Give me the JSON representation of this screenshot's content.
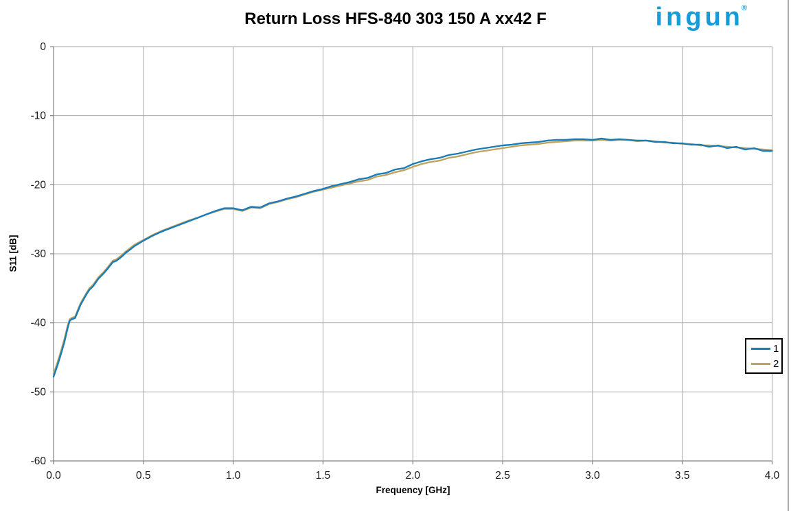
{
  "header": {
    "logo_text": "ingun",
    "logo_registered": "®",
    "logo_color": "#189cd8"
  },
  "chart_data": {
    "type": "line",
    "title": "Return Loss HFS-840 303 150 A xx42 F",
    "xlabel": "Frequency [GHz]",
    "ylabel": "S11 [dB]",
    "xlim": [
      0,
      4
    ],
    "ylim": [
      -60,
      0
    ],
    "x_ticks": [
      0,
      0.5,
      1,
      1.5,
      2,
      2.5,
      3,
      3.5,
      4
    ],
    "x_tick_labels": [
      "0.0",
      "0.5",
      "1.0",
      "1.5",
      "2.0",
      "2.5",
      "3.0",
      "3.5",
      "4.0"
    ],
    "y_ticks": [
      0,
      -10,
      -20,
      -30,
      -40,
      -50,
      -60
    ],
    "y_tick_labels": [
      "0",
      "-10",
      "-20",
      "-30",
      "-40",
      "-50",
      "-60"
    ],
    "grid": true,
    "grid_color": "#a6a6a6",
    "axis_color": "#808080",
    "tick_label_color": "#1a1a1a",
    "legend_position": "right",
    "x": [
      0,
      0.02,
      0.04,
      0.06,
      0.08,
      0.09,
      0.1,
      0.12,
      0.15,
      0.18,
      0.2,
      0.22,
      0.25,
      0.28,
      0.3,
      0.33,
      0.35,
      0.38,
      0.4,
      0.45,
      0.5,
      0.55,
      0.6,
      0.65,
      0.7,
      0.75,
      0.8,
      0.85,
      0.9,
      0.95,
      1,
      1.05,
      1.1,
      1.15,
      1.2,
      1.25,
      1.3,
      1.35,
      1.4,
      1.45,
      1.5,
      1.55,
      1.6,
      1.65,
      1.7,
      1.75,
      1.8,
      1.85,
      1.9,
      1.95,
      2,
      2.05,
      2.1,
      2.15,
      2.2,
      2.25,
      2.3,
      2.35,
      2.4,
      2.45,
      2.5,
      2.55,
      2.6,
      2.65,
      2.7,
      2.75,
      2.8,
      2.85,
      2.9,
      2.95,
      3,
      3.05,
      3.1,
      3.15,
      3.2,
      3.25,
      3.3,
      3.35,
      3.4,
      3.45,
      3.5,
      3.55,
      3.6,
      3.65,
      3.7,
      3.75,
      3.8,
      3.85,
      3.9,
      3.95,
      4
    ],
    "series": [
      {
        "name": "1",
        "color": "#187cb8",
        "values": [
          -47.8,
          -46.3,
          -44.6,
          -42.8,
          -40.6,
          -39.7,
          -39.5,
          -39.3,
          -37.4,
          -36.0,
          -35.2,
          -34.7,
          -33.6,
          -32.8,
          -32.2,
          -31.2,
          -31.0,
          -30.4,
          -29.9,
          -28.9,
          -28.1,
          -27.4,
          -26.8,
          -26.3,
          -25.8,
          -25.3,
          -24.8,
          -24.3,
          -23.8,
          -23.4,
          -23.4,
          -23.7,
          -23.2,
          -23.3,
          -22.7,
          -22.4,
          -22.0,
          -21.7,
          -21.3,
          -20.9,
          -20.6,
          -20.2,
          -19.9,
          -19.6,
          -19.2,
          -19.0,
          -18.5,
          -18.3,
          -17.8,
          -17.6,
          -17.0,
          -16.6,
          -16.3,
          -16.1,
          -15.7,
          -15.5,
          -15.2,
          -14.9,
          -14.7,
          -14.5,
          -14.3,
          -14.2,
          -14.0,
          -13.9,
          -13.8,
          -13.6,
          -13.5,
          -13.5,
          -13.4,
          -13.4,
          -13.5,
          -13.3,
          -13.5,
          -13.4,
          -13.5,
          -13.6,
          -13.6,
          -13.8,
          -13.8,
          -14.0,
          -14.0,
          -14.2,
          -14.2,
          -14.5,
          -14.3,
          -14.7,
          -14.5,
          -14.9,
          -14.7,
          -15.1,
          -15.1
        ]
      },
      {
        "name": "2",
        "color": "#c0a360",
        "values": [
          -47.4,
          -45.9,
          -44.2,
          -42.4,
          -40.3,
          -39.5,
          -39.3,
          -39.1,
          -37.2,
          -35.8,
          -35.0,
          -34.5,
          -33.4,
          -32.6,
          -32.0,
          -31.0,
          -30.8,
          -30.2,
          -29.7,
          -28.7,
          -28.0,
          -27.3,
          -26.7,
          -26.2,
          -25.7,
          -25.2,
          -24.8,
          -24.3,
          -23.9,
          -23.5,
          -23.5,
          -23.8,
          -23.3,
          -23.4,
          -22.8,
          -22.5,
          -22.1,
          -21.8,
          -21.4,
          -21.0,
          -20.7,
          -20.4,
          -20.1,
          -19.8,
          -19.5,
          -19.3,
          -18.8,
          -18.6,
          -18.2,
          -17.9,
          -17.4,
          -17.0,
          -16.7,
          -16.5,
          -16.1,
          -15.9,
          -15.6,
          -15.3,
          -15.1,
          -14.9,
          -14.7,
          -14.5,
          -14.3,
          -14.2,
          -14.1,
          -13.9,
          -13.8,
          -13.7,
          -13.6,
          -13.6,
          -13.6,
          -13.5,
          -13.6,
          -13.5,
          -13.5,
          -13.7,
          -13.6,
          -13.7,
          -13.9,
          -13.9,
          -14.1,
          -14.1,
          -14.3,
          -14.3,
          -14.4,
          -14.5,
          -14.6,
          -14.7,
          -14.8,
          -14.9,
          -15.0
        ]
      }
    ]
  }
}
